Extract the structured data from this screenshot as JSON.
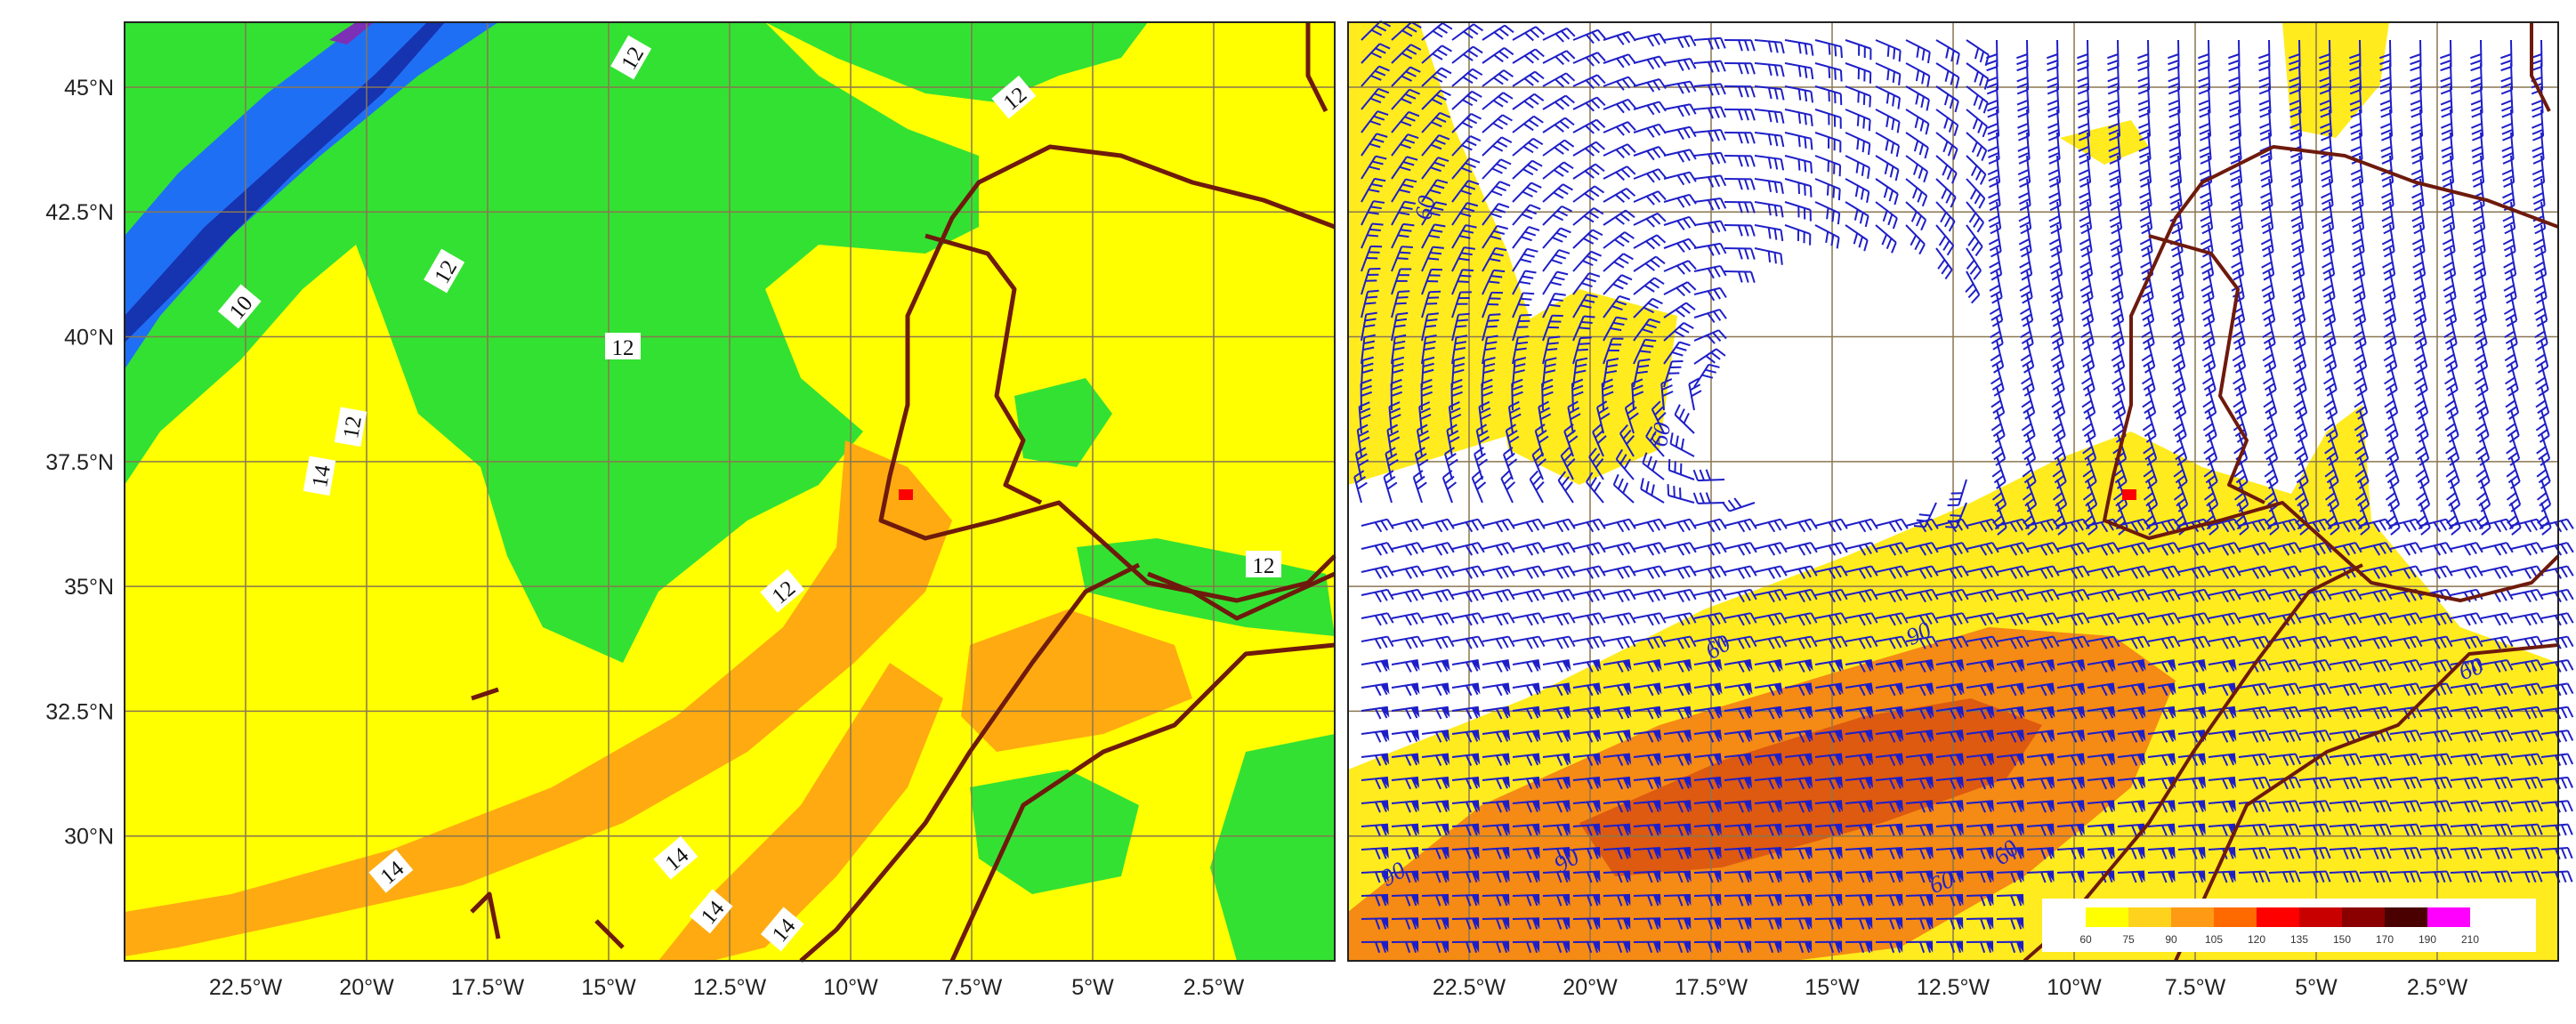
{
  "left_map": {
    "y_ticks": [
      "45°N",
      "42.5°N",
      "40°N",
      "37.5°N",
      "35°N",
      "32.5°N",
      "30°N"
    ],
    "x_ticks": [
      "22.5°W",
      "20°W",
      "17.5°W",
      "15°W",
      "12.5°W",
      "10°W",
      "7.5°W",
      "5°W",
      "2.5°W"
    ],
    "contour_labels": [
      "12",
      "12",
      "10",
      "12",
      "12",
      "12",
      "12",
      "14",
      "12",
      "14",
      "14",
      "14",
      "14"
    ],
    "colors": {
      "yellow": "#ffff00",
      "green": "#33e133",
      "orange": "#ffaa11",
      "blue": "#1f6ff5",
      "darkblue": "#1633b0",
      "border": "#6e1a0c",
      "grid": "#8a7650"
    }
  },
  "right_map": {
    "x_ticks": [
      "22.5°W",
      "20°W",
      "17.5°W",
      "15°W",
      "12.5°W",
      "10°W",
      "7.5°W",
      "5°W",
      "2.5°W"
    ],
    "contour_labels": [
      "60",
      "60",
      "60",
      "90",
      "60",
      "90",
      "90",
      "60",
      "60"
    ],
    "colorbar": {
      "labels": [
        "60",
        "75",
        "90",
        "105",
        "120",
        "135",
        "150",
        "170",
        "190",
        "210"
      ],
      "colors": [
        "#ffff00",
        "#ffd21e",
        "#ff9a14",
        "#ff6a00",
        "#ff0000",
        "#c80000",
        "#8a0000",
        "#4a0000",
        "#ff00ff"
      ]
    },
    "colors": {
      "wind_barb": "#1e1ec8",
      "shade1": "#ffeb1e",
      "shade2": "#f58a14",
      "shade3": "#dd5a10"
    }
  }
}
